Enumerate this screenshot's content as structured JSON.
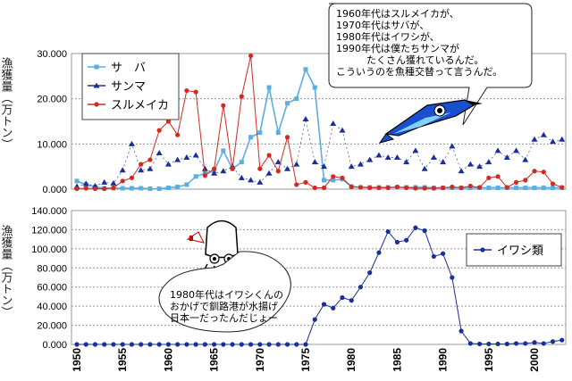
{
  "chart_data": [
    {
      "type": "line",
      "ylabel": "漁獲量（万トン）",
      "ylim": [
        0,
        30000
      ],
      "yticks": [
        "0.000",
        "10.000",
        "20.000",
        "30.000"
      ],
      "x": [
        1950,
        1951,
        1952,
        1953,
        1954,
        1955,
        1956,
        1957,
        1958,
        1959,
        1960,
        1961,
        1962,
        1963,
        1964,
        1965,
        1966,
        1967,
        1968,
        1969,
        1970,
        1971,
        1972,
        1973,
        1974,
        1975,
        1976,
        1977,
        1978,
        1979,
        1980,
        1981,
        1982,
        1983,
        1984,
        1985,
        1986,
        1987,
        1988,
        1989,
        1990,
        1991,
        1992,
        1993,
        1994,
        1995,
        1996,
        1997,
        1998,
        1999,
        2000,
        2001,
        2002,
        2003
      ],
      "series": [
        {
          "name": "サ　バ",
          "color": "#5aaee0",
          "marker": "square",
          "values": [
            1800,
            1000,
            500,
            200,
            200,
            200,
            200,
            200,
            100,
            100,
            300,
            500,
            1000,
            2800,
            3500,
            4000,
            8500,
            4500,
            6000,
            11500,
            12500,
            22500,
            12500,
            19000,
            20000,
            26500,
            22500,
            2000,
            2000,
            2200,
            600,
            400,
            400,
            400,
            400,
            400,
            400,
            400,
            400,
            300,
            300,
            300,
            300,
            300,
            300,
            300,
            300,
            300,
            300,
            300,
            300,
            300,
            300,
            300
          ]
        },
        {
          "name": "サンマ",
          "color": "#1a2f9a",
          "marker": "triangle",
          "values": [
            600,
            1200,
            700,
            1500,
            1300,
            4200,
            10000,
            4200,
            4500,
            8000,
            5500,
            6500,
            7000,
            7500,
            4500,
            3500,
            4000,
            5000,
            2500,
            2000,
            1500,
            3500,
            6000,
            4500,
            5500,
            15500,
            6000,
            5000,
            14500,
            13000,
            5000,
            5500,
            6500,
            7500,
            7000,
            7000,
            6000,
            8500,
            4500,
            7000,
            6000,
            9500,
            4000,
            5500,
            5000,
            6000,
            8500,
            7000,
            8500,
            6500,
            11000,
            12000,
            10500,
            11000
          ]
        },
        {
          "name": "スルメイカ",
          "color": "#d32a20",
          "marker": "circle",
          "values": [
            100,
            200,
            100,
            100,
            300,
            1800,
            2500,
            5500,
            6500,
            13000,
            15000,
            12000,
            21800,
            21500,
            3000,
            4500,
            18500,
            4500,
            20500,
            29500,
            4500,
            7500,
            4000,
            11500,
            1000,
            1500,
            300,
            300,
            2800,
            2500,
            500,
            400,
            300,
            300,
            300,
            500,
            300,
            200,
            200,
            200,
            300,
            500,
            300,
            700,
            400,
            2500,
            2800,
            400,
            1500,
            2000,
            4000,
            3800,
            1200,
            400
          ]
        }
      ],
      "legend": "top-left",
      "annotation": [
        "1960年代はスルメイカが、",
        "1970年代はサバが、",
        "1980年代はイワシが、",
        "1990年代は僕たちサンマが",
        "たくさん獲れているんだ。",
        "こういうのを魚種交替って言うんだ。"
      ]
    },
    {
      "type": "line",
      "ylabel": "漁獲量（万トン）",
      "ylim": [
        0,
        140000
      ],
      "yticks": [
        "0.000",
        "20.000",
        "40.000",
        "60.000",
        "80.000",
        "100.000",
        "120.000",
        "140.000"
      ],
      "x": [
        1950,
        1951,
        1952,
        1953,
        1954,
        1955,
        1956,
        1957,
        1958,
        1959,
        1960,
        1961,
        1962,
        1963,
        1964,
        1965,
        1966,
        1967,
        1968,
        1969,
        1970,
        1971,
        1972,
        1973,
        1974,
        1975,
        1976,
        1977,
        1978,
        1979,
        1980,
        1981,
        1982,
        1983,
        1984,
        1985,
        1986,
        1987,
        1988,
        1989,
        1990,
        1991,
        1992,
        1993,
        1994,
        1995,
        1996,
        1997,
        1998,
        1999,
        2000,
        2001,
        2002,
        2003
      ],
      "xticks": [
        "1950",
        "1955",
        "1960",
        "1965",
        "1970",
        "1975",
        "1980",
        "1985",
        "1990",
        "1995",
        "2000"
      ],
      "series": [
        {
          "name": "イワシ類",
          "color": "#1a2f9a",
          "marker": "circle",
          "values": [
            0,
            0,
            0,
            0,
            0,
            0,
            0,
            0,
            0,
            0,
            0,
            0,
            0,
            0,
            0,
            0,
            0,
            0,
            0,
            0,
            0,
            0,
            0,
            0,
            0,
            0,
            26000,
            42000,
            38000,
            49000,
            46000,
            60000,
            75000,
            96000,
            118000,
            107000,
            109000,
            122000,
            119000,
            92000,
            95000,
            70000,
            14000,
            1000,
            500,
            500,
            500,
            500,
            1000,
            1000,
            2000,
            1000,
            3000,
            4500
          ]
        }
      ],
      "legend": "right",
      "annotation": [
        "1980年代はイワシくんの",
        "おかげで釧路港が水揚げ",
        "日本一だったんだじょー"
      ]
    }
  ]
}
